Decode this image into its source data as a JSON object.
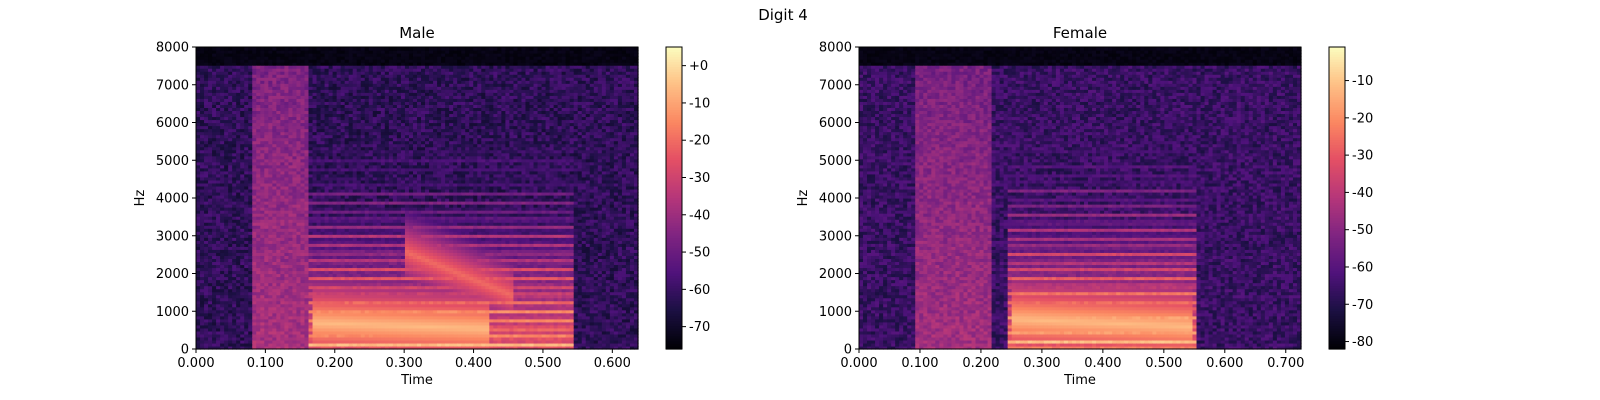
{
  "figure": {
    "title": "Digit 4"
  },
  "chart_data": [
    {
      "type": "heatmap",
      "title": "Male",
      "xlabel": "Time",
      "ylabel": "Hz",
      "xlim": [
        0.0,
        0.637
      ],
      "ylim": [
        0,
        8000
      ],
      "xticks": [
        0.0,
        0.1,
        0.2,
        0.3,
        0.4,
        0.5,
        0.6
      ],
      "xtick_labels": [
        "0.000",
        "0.100",
        "0.200",
        "0.300",
        "0.400",
        "0.500",
        "0.600"
      ],
      "yticks": [
        0,
        1000,
        2000,
        3000,
        4000,
        5000,
        6000,
        7000,
        8000
      ],
      "ytick_labels": [
        "0",
        "1000",
        "2000",
        "3000",
        "4000",
        "5000",
        "6000",
        "7000",
        "8000"
      ],
      "colormap": "magma",
      "colorbar": {
        "range": [
          -76,
          5
        ],
        "ticks": [
          0,
          -10,
          -20,
          -30,
          -40,
          -50,
          -60,
          -70
        ],
        "tick_labels": [
          "+0",
          "-10",
          "-20",
          "-30",
          "-40",
          "-50",
          "-60",
          "-70"
        ]
      },
      "features": {
        "onset_burst": {
          "t": [
            0.08,
            0.16
          ],
          "level_db": -38
        },
        "voiced": {
          "t": [
            0.165,
            0.545
          ],
          "f0_hz": 125,
          "peak_db": -4
        },
        "formant_tracks": [
          {
            "t": [
              0.17,
              0.42
            ],
            "hz": [
              700,
              550
            ],
            "db": -6
          },
          {
            "t": [
              0.3,
              0.46
            ],
            "hz": [
              2600,
              1400
            ],
            "db": -20
          }
        ],
        "noise_floor_db": -62,
        "energy_ceiling_hz": 7500
      }
    },
    {
      "type": "heatmap",
      "title": "Female",
      "xlabel": "Time",
      "ylabel": "Hz",
      "xlim": [
        0.0,
        0.725
      ],
      "ylim": [
        0,
        8000
      ],
      "xticks": [
        0.0,
        0.1,
        0.2,
        0.3,
        0.4,
        0.5,
        0.6,
        0.7
      ],
      "xtick_labels": [
        "0.000",
        "0.100",
        "0.200",
        "0.300",
        "0.400",
        "0.500",
        "0.600",
        "0.700"
      ],
      "yticks": [
        0,
        1000,
        2000,
        3000,
        4000,
        5000,
        6000,
        7000,
        8000
      ],
      "ytick_labels": [
        "0",
        "1000",
        "2000",
        "3000",
        "4000",
        "5000",
        "6000",
        "7000",
        "8000"
      ],
      "colormap": "magma",
      "colorbar": {
        "range": [
          -82,
          -1
        ],
        "ticks": [
          -10,
          -20,
          -30,
          -40,
          -50,
          -60,
          -70,
          -80
        ],
        "tick_labels": [
          "-10",
          "-20",
          "-30",
          "-40",
          "-50",
          "-60",
          "-70",
          "-80"
        ]
      },
      "features": {
        "onset_burst": {
          "t": [
            0.09,
            0.22
          ],
          "level_db": -45
        },
        "voiced": {
          "t": [
            0.245,
            0.555
          ],
          "f0_hz": 210,
          "peak_db": -8
        },
        "formant_tracks": [
          {
            "t": [
              0.25,
              0.55
            ],
            "hz": [
              800,
              600
            ],
            "db": -12
          }
        ],
        "noise_floor_db": -66,
        "energy_ceiling_hz": 7500
      }
    }
  ]
}
